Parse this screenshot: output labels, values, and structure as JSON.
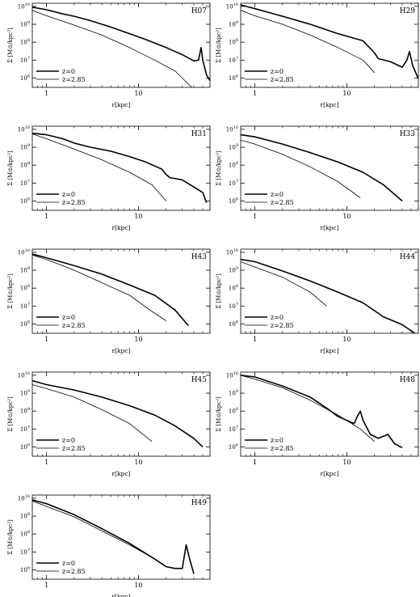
{
  "chart_data": {
    "type": "line",
    "x_scale": "log",
    "y_scale": "log",
    "xlim": [
      0.7,
      60
    ],
    "ylim": [
      300000,
      15000000000
    ],
    "x_ticks": [
      {
        "v": 1,
        "label": "1"
      },
      {
        "v": 10,
        "label": "10"
      }
    ],
    "y_ticks": [
      {
        "v": 1000000,
        "base": "10",
        "exp": "6"
      },
      {
        "v": 10000000,
        "base": "10",
        "exp": "7"
      },
      {
        "v": 100000000,
        "base": "10",
        "exp": "8"
      },
      {
        "v": 1000000000,
        "base": "10",
        "exp": "9"
      },
      {
        "v": 10000000000,
        "base": "10",
        "exp": "10"
      }
    ],
    "ylabel": "Σ [M⊙/kpc²]",
    "xlabel": "r[kpc]",
    "panels": [
      {
        "title": "H07",
        "series": [
          {
            "name": "z=0",
            "points": [
              [
                0.7,
                9000000000
              ],
              [
                1,
                6500000000
              ],
              [
                1.5,
                3800000000
              ],
              [
                2,
                2800000000
              ],
              [
                3,
                1600000000
              ],
              [
                5,
                700000000
              ],
              [
                8,
                300000000
              ],
              [
                12,
                140000000
              ],
              [
                20,
                50000000
              ],
              [
                30,
                20000000
              ],
              [
                40,
                9000000
              ],
              [
                45,
                10000000
              ],
              [
                48,
                50000000
              ],
              [
                50,
                10000000
              ],
              [
                55,
                1500000
              ],
              [
                60,
                700000
              ]
            ]
          },
          {
            "name": "z=2.85",
            "points": [
              [
                0.7,
                6000000000
              ],
              [
                1,
                3000000000
              ],
              [
                2,
                900000000
              ],
              [
                4,
                250000000
              ],
              [
                8,
                50000000
              ],
              [
                15,
                10000000
              ],
              [
                25,
                2500000
              ],
              [
                38,
                300000
              ]
            ]
          }
        ]
      },
      {
        "title": "H29",
        "series": [
          {
            "name": "z=0",
            "points": [
              [
                0.7,
                12000000000
              ],
              [
                1,
                7500000000
              ],
              [
                2,
                2800000000
              ],
              [
                4,
                1000000000
              ],
              [
                8,
                300000000
              ],
              [
                15,
                120000000
              ],
              [
                20,
                25000000
              ],
              [
                22,
                12000000
              ],
              [
                30,
                8000000
              ],
              [
                40,
                4000000
              ],
              [
                45,
                10000000
              ],
              [
                48,
                30000000
              ],
              [
                52,
                5000000
              ],
              [
                60,
                900000
              ]
            ]
          },
          {
            "name": "z=2.85",
            "points": [
              [
                0.7,
                6000000000
              ],
              [
                1,
                3000000000
              ],
              [
                2,
                1000000000
              ],
              [
                4,
                250000000
              ],
              [
                8,
                50000000
              ],
              [
                15,
                10000000
              ],
              [
                20,
                2000000
              ]
            ]
          }
        ]
      },
      {
        "title": "H31",
        "series": [
          {
            "name": "z=0",
            "points": [
              [
                0.7,
                6000000000
              ],
              [
                1,
                5000000000
              ],
              [
                1.5,
                3000000000
              ],
              [
                2,
                1700000000
              ],
              [
                3,
                1000000000
              ],
              [
                5,
                600000000
              ],
              [
                8,
                300000000
              ],
              [
                12,
                150000000
              ],
              [
                18,
                60000000
              ],
              [
                20,
                30000000
              ],
              [
                22,
                20000000
              ],
              [
                30,
                15000000
              ],
              [
                40,
                6000000
              ],
              [
                50,
                3000000
              ],
              [
                55,
                800000
              ]
            ]
          },
          {
            "name": "z=2.85",
            "points": [
              [
                0.7,
                5500000000
              ],
              [
                1,
                3000000000
              ],
              [
                2,
                800000000
              ],
              [
                4,
                200000000
              ],
              [
                8,
                40000000
              ],
              [
                14,
                8000000
              ],
              [
                20,
                1000000
              ]
            ]
          }
        ]
      },
      {
        "title": "H33",
        "series": [
          {
            "name": "z=0",
            "points": [
              [
                0.7,
                5000000000
              ],
              [
                1,
                3800000000
              ],
              [
                2,
                1500000000
              ],
              [
                4,
                500000000
              ],
              [
                8,
                150000000
              ],
              [
                15,
                40000000
              ],
              [
                25,
                8000000
              ],
              [
                40,
                1000000
              ]
            ]
          },
          {
            "name": "z=2.85",
            "points": [
              [
                0.7,
                2500000000
              ],
              [
                1,
                1500000000
              ],
              [
                2,
                400000000
              ],
              [
                4,
                80000000
              ],
              [
                8,
                12000000
              ],
              [
                14,
                1500000
              ]
            ]
          }
        ]
      },
      {
        "title": "H43",
        "series": [
          {
            "name": "z=0",
            "points": [
              [
                0.7,
                8000000000
              ],
              [
                1,
                5000000000
              ],
              [
                2,
                1800000000
              ],
              [
                4,
                600000000
              ],
              [
                8,
                150000000
              ],
              [
                15,
                40000000
              ],
              [
                25,
                6000000
              ],
              [
                35,
                800000
              ]
            ]
          },
          {
            "name": "z=2.85",
            "points": [
              [
                0.7,
                7000000000
              ],
              [
                1,
                4000000000
              ],
              [
                2,
                1000000000
              ],
              [
                4,
                200000000
              ],
              [
                8,
                40000000
              ],
              [
                14,
                5000000
              ],
              [
                20,
                1500000
              ]
            ]
          }
        ]
      },
      {
        "title": "H44",
        "series": [
          {
            "name": "z=0",
            "points": [
              [
                0.7,
                4000000000
              ],
              [
                1,
                3000000000
              ],
              [
                2,
                900000000
              ],
              [
                4,
                250000000
              ],
              [
                8,
                60000000
              ],
              [
                15,
                15000000
              ],
              [
                25,
                2500000
              ],
              [
                40,
                900000
              ],
              [
                55,
                300000
              ]
            ]
          },
          {
            "name": "z=2.85",
            "points": [
              [
                0.7,
                3000000000
              ],
              [
                1,
                1500000000
              ],
              [
                2,
                400000000
              ],
              [
                4,
                60000000
              ],
              [
                6,
                10000000
              ]
            ]
          }
        ]
      },
      {
        "title": "H45",
        "series": [
          {
            "name": "z=0",
            "points": [
              [
                0.7,
                5000000000
              ],
              [
                1,
                3000000000
              ],
              [
                2,
                1500000000
              ],
              [
                4,
                600000000
              ],
              [
                8,
                200000000
              ],
              [
                15,
                60000000
              ],
              [
                25,
                15000000
              ],
              [
                40,
                3000000
              ],
              [
                50,
                1000000
              ]
            ]
          },
          {
            "name": "z=2.85",
            "points": [
              [
                0.7,
                3000000000
              ],
              [
                1,
                1800000000
              ],
              [
                2,
                600000000
              ],
              [
                4,
                120000000
              ],
              [
                8,
                20000000
              ],
              [
                14,
                2000000
              ]
            ]
          }
        ]
      },
      {
        "title": "H48",
        "series": [
          {
            "name": "z=0",
            "points": [
              [
                0.7,
                10000000000
              ],
              [
                1,
                8000000000
              ],
              [
                2,
                2500000000
              ],
              [
                4,
                600000000
              ],
              [
                6,
                150000000
              ],
              [
                8,
                50000000
              ],
              [
                12,
                20000000
              ],
              [
                13,
                50000000
              ],
              [
                14,
                100000000
              ],
              [
                15,
                30000000
              ],
              [
                18,
                5000000
              ],
              [
                22,
                3000000
              ],
              [
                28,
                5000000
              ],
              [
                33,
                1500000
              ],
              [
                40,
                900000
              ]
            ]
          },
          {
            "name": "z=2.85",
            "points": [
              [
                0.7,
                10000000000
              ],
              [
                1,
                6000000000
              ],
              [
                2,
                2000000000
              ],
              [
                4,
                400000000
              ],
              [
                8,
                60000000
              ],
              [
                14,
                10000000
              ],
              [
                20,
                2000000
              ]
            ]
          }
        ]
      },
      {
        "title": "H49",
        "series": [
          {
            "name": "z=0",
            "points": [
              [
                0.7,
                8000000000
              ],
              [
                1,
                5000000000
              ],
              [
                2,
                1200000000
              ],
              [
                4,
                200000000
              ],
              [
                8,
                30000000
              ],
              [
                15,
                4000000
              ],
              [
                20,
                1500000
              ],
              [
                25,
                1200000
              ],
              [
                30,
                1200000
              ],
              [
                33,
                25000000
              ],
              [
                36,
                4000000
              ],
              [
                40,
                600000
              ]
            ]
          },
          {
            "name": "z=2.85",
            "points": [
              [
                0.7,
                7000000000
              ],
              [
                1,
                3500000000
              ],
              [
                2,
                900000000
              ],
              [
                4,
                150000000
              ],
              [
                8,
                25000000
              ],
              [
                14,
                5000000
              ],
              [
                20,
                1500000
              ]
            ]
          }
        ]
      }
    ]
  }
}
